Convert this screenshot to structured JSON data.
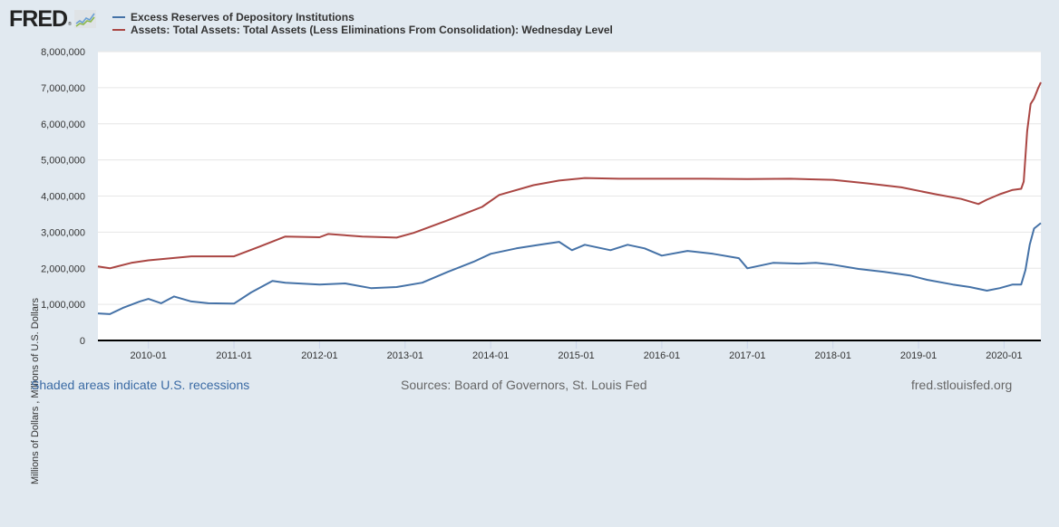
{
  "header": {
    "logo_text": "FRED",
    "logo_mark": "®",
    "logo_icon": "chart-line-icon"
  },
  "colors": {
    "background": "#e1e9f0",
    "plot_background": "#ffffff",
    "gridline": "#e6e6e6",
    "excess_reserves": "#4572a7",
    "total_assets": "#aa4643",
    "link": "#3a6aa4"
  },
  "chart_data": {
    "type": "line",
    "title": "",
    "xlabel": "",
    "ylabel": "Millions of Dollars , Millions of U.S. Dollars",
    "xlim": [
      2009.41,
      2020.43
    ],
    "ylim": [
      0,
      8000000
    ],
    "grid": true,
    "legend_position": "top-left",
    "x_ticks": [
      {
        "value": 2010.0,
        "label": "2010-01"
      },
      {
        "value": 2011.0,
        "label": "2011-01"
      },
      {
        "value": 2012.0,
        "label": "2012-01"
      },
      {
        "value": 2013.0,
        "label": "2013-01"
      },
      {
        "value": 2014.0,
        "label": "2014-01"
      },
      {
        "value": 2015.0,
        "label": "2015-01"
      },
      {
        "value": 2016.0,
        "label": "2016-01"
      },
      {
        "value": 2017.0,
        "label": "2017-01"
      },
      {
        "value": 2018.0,
        "label": "2018-01"
      },
      {
        "value": 2019.0,
        "label": "2019-01"
      },
      {
        "value": 2020.0,
        "label": "2020-01"
      }
    ],
    "y_ticks": [
      {
        "value": 0,
        "label": "0"
      },
      {
        "value": 1000000,
        "label": "1,000,000"
      },
      {
        "value": 2000000,
        "label": "2,000,000"
      },
      {
        "value": 3000000,
        "label": "3,000,000"
      },
      {
        "value": 4000000,
        "label": "4,000,000"
      },
      {
        "value": 5000000,
        "label": "5,000,000"
      },
      {
        "value": 6000000,
        "label": "6,000,000"
      },
      {
        "value": 7000000,
        "label": "7,000,000"
      },
      {
        "value": 8000000,
        "label": "8,000,000"
      }
    ],
    "series": [
      {
        "name": "Excess Reserves of Depository Institutions",
        "color": "#4572a7",
        "x": [
          2009.41,
          2009.55,
          2009.7,
          2009.9,
          2010.0,
          2010.15,
          2010.3,
          2010.5,
          2010.7,
          2011.0,
          2011.2,
          2011.45,
          2011.6,
          2012.0,
          2012.3,
          2012.6,
          2012.9,
          2013.2,
          2013.5,
          2013.8,
          2014.0,
          2014.3,
          2014.6,
          2014.8,
          2014.95,
          2015.1,
          2015.4,
          2015.6,
          2015.8,
          2016.0,
          2016.3,
          2016.6,
          2016.9,
          2017.0,
          2017.3,
          2017.6,
          2017.8,
          2018.0,
          2018.3,
          2018.6,
          2018.9,
          2019.1,
          2019.4,
          2019.6,
          2019.8,
          2019.95,
          2020.1,
          2020.2,
          2020.25,
          2020.3,
          2020.35,
          2020.43
        ],
        "values": [
          750000,
          730000,
          900000,
          1080000,
          1150000,
          1030000,
          1220000,
          1080000,
          1030000,
          1020000,
          1330000,
          1650000,
          1600000,
          1550000,
          1580000,
          1450000,
          1480000,
          1600000,
          1900000,
          2180000,
          2400000,
          2550000,
          2660000,
          2730000,
          2500000,
          2650000,
          2500000,
          2650000,
          2550000,
          2350000,
          2480000,
          2400000,
          2280000,
          2000000,
          2150000,
          2130000,
          2150000,
          2100000,
          1980000,
          1900000,
          1800000,
          1680000,
          1550000,
          1480000,
          1380000,
          1450000,
          1550000,
          1550000,
          1950000,
          2650000,
          3100000,
          3250000
        ]
      },
      {
        "name": "Assets: Total Assets: Total Assets (Less Eliminations From Consolidation): Wednesday Level",
        "color": "#aa4643",
        "x": [
          2009.41,
          2009.55,
          2009.8,
          2010.0,
          2010.5,
          2010.7,
          2011.0,
          2011.3,
          2011.6,
          2012.0,
          2012.1,
          2012.5,
          2012.9,
          2013.1,
          2013.5,
          2013.9,
          2014.1,
          2014.5,
          2014.8,
          2015.1,
          2015.5,
          2016.0,
          2016.5,
          2017.0,
          2017.5,
          2018.0,
          2018.4,
          2018.8,
          2019.2,
          2019.5,
          2019.7,
          2019.8,
          2019.95,
          2020.1,
          2020.2,
          2020.23,
          2020.27,
          2020.31,
          2020.35,
          2020.4,
          2020.43
        ],
        "values": [
          2050000,
          2000000,
          2150000,
          2220000,
          2330000,
          2330000,
          2330000,
          2600000,
          2880000,
          2860000,
          2950000,
          2880000,
          2850000,
          2980000,
          3330000,
          3700000,
          4030000,
          4300000,
          4430000,
          4500000,
          4480000,
          4480000,
          4480000,
          4470000,
          4480000,
          4450000,
          4350000,
          4240000,
          4050000,
          3920000,
          3780000,
          3900000,
          4050000,
          4170000,
          4200000,
          4400000,
          5800000,
          6550000,
          6700000,
          7000000,
          7150000
        ]
      }
    ]
  },
  "footer": {
    "recessions_note": "Shaded areas indicate U.S. recessions",
    "sources": "Sources: Board of Governors, St. Louis Fed",
    "site": "fred.stlouisfed.org"
  }
}
